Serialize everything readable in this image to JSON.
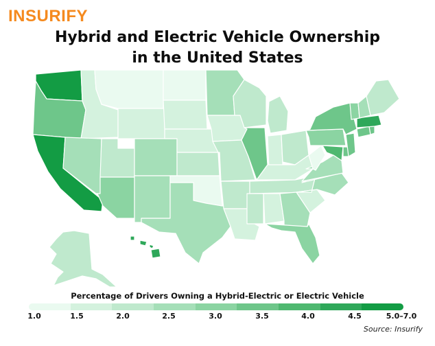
{
  "brand": {
    "logo_text": "INSURIFY",
    "logo_color": "#f58a1f"
  },
  "title": {
    "line1": "Hybrid and Electric Vehicle Ownership",
    "line2": "in the United States"
  },
  "legend": {
    "title": "Percentage of Drivers Owning a Hybrid-Electric or Electric Vehicle",
    "labels": [
      "1.0",
      "1.5",
      "2.0",
      "2.5",
      "3.0",
      "3.5",
      "4.0",
      "4.5",
      "5.0–7.0"
    ],
    "colors": [
      "#eafaf0",
      "#d4f2de",
      "#bfe9cd",
      "#a5dfb8",
      "#8bd4a2",
      "#6ec68a",
      "#4fb870",
      "#2fa85a",
      "#139c44"
    ]
  },
  "source": "Source: Insurify",
  "map": {
    "color_scale": "green",
    "state_levels": {
      "WA": 8,
      "OR": 5,
      "CA": 8,
      "ID": 1,
      "NV": 3,
      "MT": 0,
      "WY": 1,
      "UT": 2,
      "AZ": 4,
      "CO": 3,
      "NM": 3,
      "ND": 0,
      "SD": 1,
      "NE": 1,
      "KS": 2,
      "OK": 0,
      "TX": 3,
      "MN": 3,
      "IA": 1,
      "MO": 2,
      "AR": 2,
      "LA": 1,
      "WI": 2,
      "IL": 5,
      "MI": 2,
      "IN": 1,
      "OH": 2,
      "KY": 1,
      "TN": 2,
      "MS": 2,
      "AL": 1,
      "GA": 3,
      "FL": 4,
      "SC": 1,
      "NC": 3,
      "VA": 3,
      "WV": 0,
      "MD": 6,
      "DE": 5,
      "PA": 4,
      "NJ": 5,
      "NY": 5,
      "CT": 5,
      "RI": 5,
      "MA": 7,
      "VT": 4,
      "NH": 3,
      "ME": 2,
      "AK": 2,
      "HI": 7
    }
  }
}
